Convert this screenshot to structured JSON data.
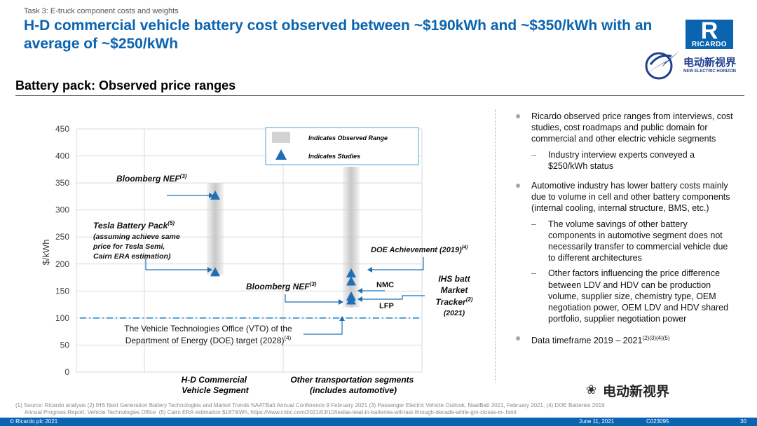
{
  "header": {
    "task": "Task 3: E-truck component costs and weights",
    "title": "H-D commercial vehicle battery cost observed between ~$190kWh and ~$350/kWh with an average of ~$250/kWh",
    "subtitle": "Battery pack: Observed price ranges"
  },
  "brand": {
    "logo_letter": "R",
    "logo_text": "RICARDO",
    "cn_name": "电动新视界",
    "cn_sub": "NEW ELECTRIC HORIZON",
    "blue": "#0a64b0"
  },
  "chart_data": {
    "type": "scatter",
    "ylabel": "$/kWh",
    "ylim": [
      0,
      450
    ],
    "yticks": [
      0,
      50,
      100,
      150,
      200,
      250,
      300,
      350,
      400,
      450
    ],
    "categories": [
      "H-D Commercial Vehicle Segment",
      "Other transportation segments (includes automotive)"
    ],
    "category_labels": [
      [
        "H-D Commercial",
        "Vehicle Segment"
      ],
      [
        "Other transportation segments",
        "(includes automotive)"
      ]
    ],
    "ranges": [
      {
        "category": 0,
        "low": 180,
        "high": 350
      },
      {
        "category": 1,
        "low": 120,
        "high": 380
      }
    ],
    "studies": [
      {
        "category": 0,
        "y": 327
      },
      {
        "category": 0,
        "y": 185
      },
      {
        "category": 1,
        "y": 183
      },
      {
        "category": 1,
        "y": 168
      },
      {
        "category": 1,
        "y": 140
      },
      {
        "category": 1,
        "y": 133
      }
    ],
    "target_line": {
      "y": 100
    },
    "grid": true,
    "legend": {
      "placement": "top-right",
      "range_label": "Indicates Observed Range",
      "study_label": "Indicates Studies"
    },
    "annotations": {
      "bnef_1": "Bloomberg NEF",
      "bnef_1_sup": "(3)",
      "tesla_title": "Tesla Battery Pack",
      "tesla_sup": "(5)",
      "tesla_l1": "(assuming achieve same",
      "tesla_l2": "price for Tesla Semi,",
      "tesla_l3": "Cairn ERA estimation)",
      "bnef_2": "Bloomberg NEF",
      "bnef_2_sup": "(3)",
      "vto_l1": "The Vehicle Technologies Office (VTO) of the",
      "vto_l2": "Department of Energy (DOE) target (2028)",
      "vto_sup": "(4)",
      "doe": "DOE Achievement (2019)",
      "doe_sup": "(4)",
      "nmc": "NMC",
      "lfp": "LFP",
      "ihs_l1": "IHS batt",
      "ihs_l2": "Market",
      "ihs_l3": "Tracker",
      "ihs_sup": "(2)",
      "ihs_l4": "(2021)"
    },
    "colors": {
      "range": "#c8c8c8",
      "study": "#1f6fb5",
      "target": "#4ea3dc",
      "arrow": "#1f6fb5"
    }
  },
  "bullets": [
    {
      "text": "Ricardo observed price ranges from interviews, cost studies, cost roadmaps and public domain for commercial and other electric vehicle segments",
      "subs": [
        "Industry interview experts conveyed a $250/kWh status"
      ]
    },
    {
      "text": "Automotive industry has lower battery costs mainly due to volume in cell and other battery components (internal cooling, internal structure, BMS, etc.)",
      "subs": [
        "The volume savings of other battery components in automotive segment does not necessarily transfer to commercial vehicle due to different architectures",
        "Other factors influencing the price difference between LDV and HDV can be production volume, supplier size, chemistry type, OEM negotiation power, OEM LDV and HDV shared portfolio, supplier negotiation power"
      ]
    },
    {
      "text": "Data timeframe 2019 – 2021",
      "sup": "(2)(3)(4)(5)",
      "subs": []
    }
  ],
  "footnote": {
    "line1": "(1)  Source: Ricardo analysis  (2) IHS Next Generation Battery Technologies and Market Trends NAATBatt Annual Conference 9 February 2021 (3) Passenger Electric Vehicle Outlook, NaatBatt 2021, February 2021, (4) DOE Batteries 2019",
    "line2": "      Annual Progress Report, Vehicle Technologies Office  (5) Cairn ERA estimation $187/kWh, https://www.cnbc.com/2021/03/10/teslas-lead-in-batteries-will-last-through-decade-while-gm-closes-in-.html"
  },
  "footer": {
    "copyright": "© Ricardo plc 2021",
    "date": "June 11, 2021",
    "doc_id": "C023095",
    "page": "30"
  },
  "watermark": {
    "text": "电动新视界",
    "icon": "wechat-icon"
  }
}
